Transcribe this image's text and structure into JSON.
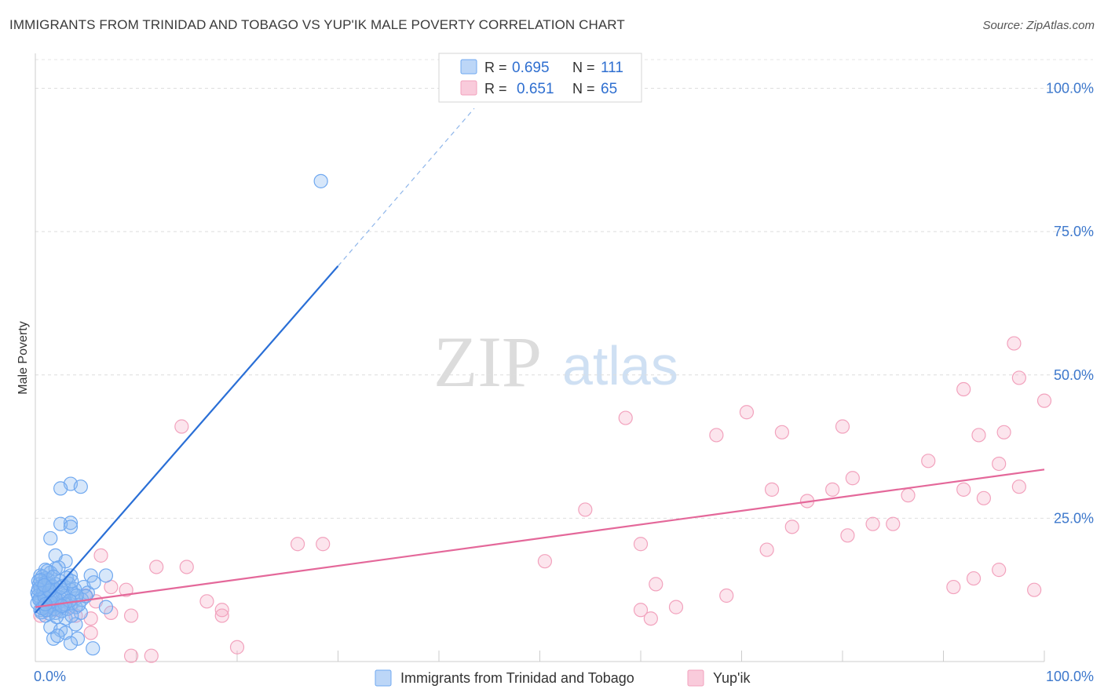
{
  "title": "IMMIGRANTS FROM TRINIDAD AND TOBAGO VS YUP'IK MALE POVERTY CORRELATION CHART",
  "source": "Source: ZipAtlas.com",
  "watermark": {
    "zip": "ZIP",
    "atlas": "atlas"
  },
  "legend_box": {
    "rows": [
      {
        "r_label": "R =",
        "r_value": "0.695",
        "n_label": "N =",
        "n_value": "111"
      },
      {
        "r_label": "R =",
        "r_value": "0.651",
        "n_label": "N =",
        "n_value": "65"
      }
    ]
  },
  "bottom_legend": [
    {
      "label": "Immigrants from Trinidad and Tobago"
    },
    {
      "label": "Yup'ik"
    }
  ],
  "chart_data": {
    "type": "scatter",
    "title": "IMMIGRANTS FROM TRINIDAD AND TOBAGO VS YUP'IK MALE POVERTY CORRELATION CHART",
    "xlabel": "",
    "ylabel": "Male Poverty",
    "xlim": [
      0,
      100
    ],
    "ylim": [
      0,
      105
    ],
    "x_tick_labels": [
      "0.0%",
      "100.0%"
    ],
    "y_tick_labels": [
      "25.0%",
      "50.0%",
      "75.0%",
      "100.0%"
    ],
    "y_ticks": [
      25,
      50,
      75,
      100
    ],
    "grid": true,
    "legend_placement": "bottom",
    "series": [
      {
        "name": "Immigrants from Trinidad and Tobago",
        "color": "#6fa8f0",
        "line_color": "#2a6fd6",
        "r": 0.695,
        "n": 111,
        "trend": {
          "x_start": 0.0,
          "y_start": 8.5,
          "x_solid_end": 30.0,
          "y_solid_end": 69.0,
          "x_dash_end": 43.5,
          "y_dash_end": 96.5
        },
        "points": [
          [
            28.3,
            83.8
          ],
          [
            3.5,
            31.0
          ],
          [
            2.5,
            30.2
          ],
          [
            4.5,
            30.5
          ],
          [
            3.5,
            24.2
          ],
          [
            2.5,
            24.0
          ],
          [
            3.5,
            23.5
          ],
          [
            1.5,
            21.5
          ],
          [
            2.0,
            18.5
          ],
          [
            3.0,
            17.5
          ],
          [
            1.0,
            16.0
          ],
          [
            2.0,
            16.2
          ],
          [
            0.5,
            15.0
          ],
          [
            1.5,
            15.5
          ],
          [
            3.5,
            15.0
          ],
          [
            5.5,
            15.0
          ],
          [
            7.0,
            15.0
          ],
          [
            0.3,
            14.0
          ],
          [
            1.0,
            14.5
          ],
          [
            2.5,
            14.0
          ],
          [
            1.5,
            13.0
          ],
          [
            0.5,
            12.5
          ],
          [
            0.2,
            12.0
          ],
          [
            1.0,
            11.8
          ],
          [
            2.0,
            12.5
          ],
          [
            3.5,
            12.5
          ],
          [
            0.5,
            11.0
          ],
          [
            1.5,
            11.0
          ],
          [
            2.5,
            10.5
          ],
          [
            3.0,
            11.5
          ],
          [
            4.0,
            11.0
          ],
          [
            0.8,
            10.0
          ],
          [
            1.8,
            10.0
          ],
          [
            2.5,
            9.5
          ],
          [
            3.5,
            10.0
          ],
          [
            0.5,
            9.0
          ],
          [
            1.5,
            9.0
          ],
          [
            2.0,
            8.5
          ],
          [
            4.5,
            8.5
          ],
          [
            7.0,
            9.5
          ],
          [
            1.0,
            8.0
          ],
          [
            3.0,
            7.5
          ],
          [
            4.0,
            6.5
          ],
          [
            1.5,
            6.0
          ],
          [
            2.5,
            5.5
          ],
          [
            3.0,
            5.0
          ],
          [
            1.8,
            4.0
          ],
          [
            2.2,
            4.5
          ],
          [
            4.2,
            4.0
          ],
          [
            3.5,
            3.2
          ],
          [
            5.7,
            2.3
          ],
          [
            0.8,
            13.0
          ],
          [
            1.2,
            12.2
          ],
          [
            0.4,
            13.5
          ],
          [
            2.8,
            13.2
          ],
          [
            4.8,
            13.0
          ],
          [
            5.2,
            12.0
          ],
          [
            0.6,
            10.5
          ],
          [
            1.3,
            10.8
          ],
          [
            2.2,
            10.2
          ],
          [
            3.2,
            9.2
          ],
          [
            0.9,
            9.6
          ],
          [
            1.7,
            9.8
          ],
          [
            4.0,
            9.5
          ],
          [
            2.4,
            11.2
          ],
          [
            0.3,
            11.5
          ],
          [
            1.1,
            12.8
          ],
          [
            3.8,
            11.8
          ],
          [
            0.7,
            14.8
          ],
          [
            2.6,
            8.8
          ],
          [
            1.4,
            8.4
          ],
          [
            3.6,
            8.0
          ],
          [
            0.2,
            10.2
          ],
          [
            4.6,
            10.8
          ],
          [
            5.8,
            13.8
          ],
          [
            0.5,
            13.0
          ],
          [
            1.0,
            13.8
          ],
          [
            2.0,
            13.5
          ],
          [
            1.3,
            14.2
          ],
          [
            0.8,
            12.0
          ],
          [
            1.6,
            11.6
          ],
          [
            2.7,
            12.0
          ],
          [
            3.3,
            13.6
          ],
          [
            0.4,
            10.8
          ],
          [
            1.9,
            9.2
          ],
          [
            2.1,
            7.8
          ],
          [
            3.9,
            12.6
          ],
          [
            0.6,
            8.6
          ],
          [
            4.3,
            9.9
          ],
          [
            5.0,
            11.4
          ],
          [
            1.2,
            15.8
          ],
          [
            2.3,
            16.4
          ],
          [
            3.1,
            14.6
          ],
          [
            0.9,
            11.3
          ],
          [
            1.5,
            10.4
          ],
          [
            2.9,
            10.0
          ],
          [
            0.3,
            12.6
          ],
          [
            1.7,
            13.1
          ],
          [
            2.5,
            12.9
          ],
          [
            3.6,
            14.0
          ],
          [
            0.7,
            9.3
          ],
          [
            1.1,
            9.0
          ],
          [
            4.1,
            11.5
          ],
          [
            2.0,
            11.0
          ],
          [
            1.4,
            12.4
          ],
          [
            0.5,
            14.2
          ],
          [
            3.4,
            10.6
          ],
          [
            2.6,
            9.7
          ],
          [
            1.8,
            14.8
          ],
          [
            0.9,
            13.3
          ],
          [
            1.0,
            10.0
          ]
        ]
      },
      {
        "name": "Yup'ik",
        "color": "#f2a2bd",
        "line_color": "#e4689a",
        "r": 0.651,
        "n": 65,
        "trend": {
          "x_start": 0.0,
          "y_start": 9.5,
          "x_end": 100.0,
          "y_end": 33.5
        },
        "points": [
          [
            97.0,
            55.5
          ],
          [
            97.5,
            49.5
          ],
          [
            100.0,
            45.5
          ],
          [
            92.0,
            47.5
          ],
          [
            14.5,
            41.0
          ],
          [
            58.5,
            42.5
          ],
          [
            70.5,
            43.5
          ],
          [
            80.0,
            41.0
          ],
          [
            67.5,
            39.5
          ],
          [
            74.0,
            40.0
          ],
          [
            93.5,
            39.5
          ],
          [
            96.0,
            40.0
          ],
          [
            88.5,
            35.0
          ],
          [
            95.5,
            34.5
          ],
          [
            81.0,
            32.0
          ],
          [
            73.0,
            30.0
          ],
          [
            79.0,
            30.0
          ],
          [
            92.0,
            30.0
          ],
          [
            97.5,
            30.5
          ],
          [
            86.5,
            29.0
          ],
          [
            94.0,
            28.5
          ],
          [
            76.5,
            28.0
          ],
          [
            54.5,
            26.5
          ],
          [
            75.0,
            23.5
          ],
          [
            83.0,
            24.0
          ],
          [
            85.0,
            24.0
          ],
          [
            80.5,
            22.0
          ],
          [
            60.0,
            20.5
          ],
          [
            26.0,
            20.5
          ],
          [
            28.5,
            20.5
          ],
          [
            72.5,
            19.5
          ],
          [
            6.5,
            18.5
          ],
          [
            50.5,
            17.5
          ],
          [
            12.0,
            16.5
          ],
          [
            15.0,
            16.5
          ],
          [
            95.5,
            16.0
          ],
          [
            93.0,
            14.5
          ],
          [
            91.0,
            13.0
          ],
          [
            99.0,
            12.5
          ],
          [
            61.5,
            13.5
          ],
          [
            9.0,
            12.5
          ],
          [
            68.5,
            11.5
          ],
          [
            17.0,
            10.5
          ],
          [
            6.0,
            10.5
          ],
          [
            18.5,
            9.0
          ],
          [
            63.5,
            9.5
          ],
          [
            60.0,
            9.0
          ],
          [
            9.5,
            8.0
          ],
          [
            61.0,
            7.5
          ],
          [
            18.5,
            8.0
          ],
          [
            7.5,
            8.5
          ],
          [
            4.0,
            8.0
          ],
          [
            5.5,
            7.5
          ],
          [
            0.5,
            8.0
          ],
          [
            1.0,
            10.0
          ],
          [
            5.5,
            5.0
          ],
          [
            3.5,
            9.5
          ],
          [
            2.5,
            10.5
          ],
          [
            7.5,
            13.0
          ],
          [
            1.5,
            9.0
          ],
          [
            20.0,
            2.5
          ],
          [
            9.5,
            1.0
          ],
          [
            11.5,
            1.0
          ],
          [
            5.0,
            11.5
          ],
          [
            2.0,
            9.0
          ]
        ]
      }
    ]
  }
}
